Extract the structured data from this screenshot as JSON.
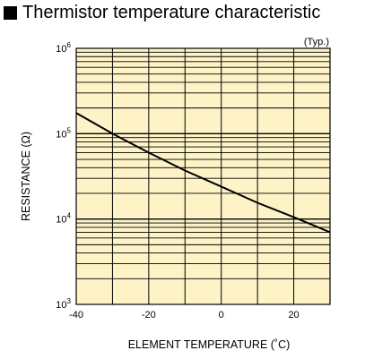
{
  "title": "Thermistor temperature characteristic",
  "colors": {
    "plot_background": "#fdf3c6",
    "grid": "#000000",
    "curve": "#000000"
  },
  "chart_data": {
    "type": "line",
    "title": "Thermistor temperature characteristic",
    "note": "(Typ.)",
    "xlabel": "ELEMENT TEMPERATURE (˚C)",
    "ylabel": "RESISTANCE (Ω)",
    "xlim": [
      -40,
      30
    ],
    "ylim": [
      1000,
      1000000
    ],
    "yscale": "log",
    "grid": true,
    "x_ticks": [
      {
        "value": -40,
        "label": "-40"
      },
      {
        "value": -20,
        "label": "-20"
      },
      {
        "value": 0,
        "label": "0"
      },
      {
        "value": 20,
        "label": "20"
      }
    ],
    "y_ticks": [
      {
        "value": 1000,
        "base": "10",
        "exp": "3"
      },
      {
        "value": 10000,
        "base": "10",
        "exp": "4"
      },
      {
        "value": 100000,
        "base": "10",
        "exp": "5"
      },
      {
        "value": 1000000,
        "base": "10",
        "exp": "6"
      }
    ],
    "series": [
      {
        "x": [
          -40,
          -30,
          -20,
          -10,
          0,
          10,
          20,
          30
        ],
        "y": [
          175000,
          100000,
          60000,
          37000,
          24000,
          15500,
          10500,
          7000
        ]
      }
    ]
  }
}
